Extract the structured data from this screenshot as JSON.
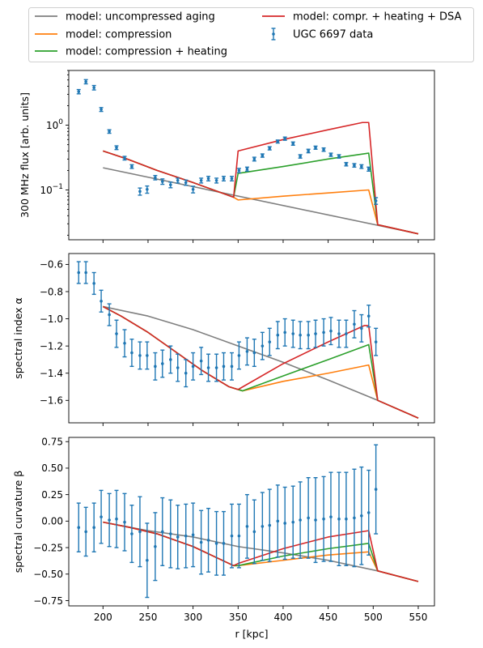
{
  "legend": [
    {
      "label": "model: uncompressed aging",
      "color": "#7f7f7f",
      "kind": "line"
    },
    {
      "label": "model: compression",
      "color": "#ff7f0e",
      "kind": "line"
    },
    {
      "label": "model: compression + heating",
      "color": "#2ca02c",
      "kind": "line"
    },
    {
      "label": "model: compr. + heating + DSA",
      "color": "#d62728",
      "kind": "line"
    },
    {
      "label": "UGC 6697 data",
      "color": "#1f77b4",
      "kind": "errorbar"
    }
  ],
  "chart_data": [
    {
      "type": "line",
      "ylabel": "300 MHz flux [arb. units]",
      "yscale": "log",
      "xlim": [
        162,
        568
      ],
      "ylim": [
        0.017,
        7.0
      ],
      "yticks": [
        {
          "v": 0.1,
          "label": "10^-1"
        },
        {
          "v": 1,
          "label": "10^0"
        }
      ],
      "series": [
        {
          "name": "model: uncompressed aging",
          "color": "#7f7f7f",
          "x": [
            200,
            550
          ],
          "y": [
            0.22,
            0.021
          ]
        },
        {
          "name": "model: compression",
          "color": "#ff7f0e",
          "x": [
            200,
            227,
            260,
            300,
            345,
            350,
            400,
            450,
            495,
            505,
            550
          ],
          "y": [
            0.4,
            0.3,
            0.2,
            0.13,
            0.077,
            0.07,
            0.08,
            0.09,
            0.1,
            0.029,
            0.021
          ]
        },
        {
          "name": "model: compression + heating",
          "color": "#2ca02c",
          "x": [
            200,
            227,
            260,
            300,
            345,
            350,
            400,
            450,
            495,
            505,
            550
          ],
          "y": [
            0.4,
            0.3,
            0.2,
            0.13,
            0.077,
            0.18,
            0.23,
            0.3,
            0.37,
            0.029,
            0.021
          ]
        },
        {
          "name": "model: compr. + heating + DSA",
          "color": "#d62728",
          "x": [
            200,
            227,
            260,
            300,
            345,
            350,
            400,
            450,
            488,
            495,
            505,
            550
          ],
          "y": [
            0.4,
            0.3,
            0.2,
            0.13,
            0.077,
            0.4,
            0.6,
            0.85,
            1.1,
            1.1,
            0.029,
            0.021
          ]
        }
      ],
      "points": {
        "name": "UGC 6697 data",
        "color": "#1f77b4",
        "x": [
          173,
          181,
          190,
          198,
          207,
          215,
          224,
          232,
          241,
          249,
          258,
          266,
          275,
          283,
          292,
          300,
          309,
          317,
          326,
          334,
          343,
          351,
          360,
          368,
          377,
          385,
          394,
          402,
          411,
          419,
          428,
          436,
          445,
          453,
          462,
          470,
          479,
          487,
          495,
          503
        ],
        "y": [
          3.3,
          4.7,
          3.8,
          1.75,
          0.8,
          0.45,
          0.31,
          0.23,
          0.095,
          0.102,
          0.155,
          0.135,
          0.12,
          0.14,
          0.13,
          0.102,
          0.14,
          0.15,
          0.14,
          0.15,
          0.15,
          0.2,
          0.21,
          0.3,
          0.34,
          0.44,
          0.56,
          0.62,
          0.52,
          0.33,
          0.4,
          0.45,
          0.42,
          0.35,
          0.33,
          0.25,
          0.24,
          0.23,
          0.21,
          0.068
        ],
        "err": [
          0.25,
          0.35,
          0.3,
          0.12,
          0.05,
          0.03,
          0.02,
          0.015,
          0.012,
          0.013,
          0.012,
          0.013,
          0.012,
          0.012,
          0.012,
          0.012,
          0.012,
          0.012,
          0.012,
          0.012,
          0.012,
          0.015,
          0.015,
          0.02,
          0.02,
          0.025,
          0.03,
          0.035,
          0.03,
          0.02,
          0.025,
          0.025,
          0.025,
          0.02,
          0.02,
          0.015,
          0.015,
          0.015,
          0.015,
          0.008
        ]
      }
    },
    {
      "type": "line",
      "ylabel": "spectral index α",
      "yscale": "linear",
      "xlim": [
        162,
        568
      ],
      "ylim": [
        -1.765,
        -0.52
      ],
      "yticks": [
        {
          "v": -0.6,
          "label": "−0.6"
        },
        {
          "v": -0.8,
          "label": "−0.8"
        },
        {
          "v": -1.0,
          "label": "−1.0"
        },
        {
          "v": -1.2,
          "label": "−1.2"
        },
        {
          "v": -1.4,
          "label": "−1.4"
        },
        {
          "v": -1.6,
          "label": "−1.6"
        }
      ],
      "series": [
        {
          "name": "model: uncompressed aging",
          "color": "#7f7f7f",
          "x": [
            200,
            250,
            300,
            350,
            400,
            450,
            505,
            550
          ],
          "y": [
            -0.91,
            -0.98,
            -1.08,
            -1.2,
            -1.32,
            -1.45,
            -1.6,
            -1.73
          ]
        },
        {
          "name": "model: compression",
          "color": "#ff7f0e",
          "x": [
            200,
            220,
            250,
            280,
            310,
            340,
            355,
            400,
            450,
            495,
            505,
            550
          ],
          "y": [
            -0.91,
            -0.98,
            -1.1,
            -1.24,
            -1.38,
            -1.5,
            -1.53,
            -1.46,
            -1.4,
            -1.34,
            -1.6,
            -1.73
          ]
        },
        {
          "name": "model: compression + heating",
          "color": "#2ca02c",
          "x": [
            200,
            220,
            250,
            280,
            310,
            340,
            355,
            400,
            450,
            495,
            505,
            550
          ],
          "y": [
            -0.91,
            -0.98,
            -1.1,
            -1.24,
            -1.38,
            -1.5,
            -1.53,
            -1.42,
            -1.3,
            -1.19,
            -1.6,
            -1.73
          ]
        },
        {
          "name": "model: compr. + heating + DSA",
          "color": "#d62728",
          "x": [
            200,
            220,
            250,
            280,
            310,
            340,
            350,
            400,
            450,
            490,
            495,
            505,
            550
          ],
          "y": [
            -0.91,
            -0.98,
            -1.1,
            -1.24,
            -1.38,
            -1.5,
            -1.52,
            -1.33,
            -1.17,
            -1.05,
            -1.05,
            -1.6,
            -1.73
          ]
        }
      ],
      "points": {
        "name": "UGC 6697 data",
        "color": "#1f77b4",
        "x": [
          173,
          181,
          190,
          198,
          207,
          215,
          224,
          232,
          241,
          249,
          258,
          266,
          275,
          283,
          292,
          300,
          309,
          317,
          326,
          334,
          343,
          351,
          360,
          368,
          377,
          385,
          394,
          402,
          411,
          419,
          428,
          436,
          445,
          453,
          462,
          470,
          479,
          487,
          495,
          503
        ],
        "y": [
          -0.66,
          -0.66,
          -0.74,
          -0.87,
          -0.97,
          -1.11,
          -1.18,
          -1.25,
          -1.27,
          -1.27,
          -1.35,
          -1.33,
          -1.3,
          -1.36,
          -1.4,
          -1.35,
          -1.31,
          -1.36,
          -1.36,
          -1.35,
          -1.35,
          -1.27,
          -1.24,
          -1.25,
          -1.2,
          -1.17,
          -1.12,
          -1.1,
          -1.11,
          -1.12,
          -1.12,
          -1.11,
          -1.1,
          -1.09,
          -1.11,
          -1.11,
          -1.04,
          -1.07,
          -0.98,
          -1.17
        ],
        "err": [
          0.08,
          0.08,
          0.08,
          0.08,
          0.08,
          0.1,
          0.1,
          0.1,
          0.1,
          0.1,
          0.1,
          0.1,
          0.1,
          0.1,
          0.1,
          0.1,
          0.1,
          0.1,
          0.1,
          0.1,
          0.1,
          0.1,
          0.1,
          0.1,
          0.1,
          0.1,
          0.1,
          0.1,
          0.1,
          0.1,
          0.1,
          0.1,
          0.1,
          0.1,
          0.1,
          0.1,
          0.1,
          0.1,
          0.08,
          0.1
        ]
      }
    },
    {
      "type": "line",
      "ylabel": "spectral curvature β",
      "yscale": "linear",
      "xlim": [
        162,
        568
      ],
      "ylim": [
        -0.8,
        0.79
      ],
      "xlabel": "r [kpc]",
      "xticks": [
        200,
        250,
        300,
        350,
        400,
        450,
        500,
        550
      ],
      "yticks": [
        {
          "v": 0.75,
          "label": "0.75"
        },
        {
          "v": 0.5,
          "label": "0.50"
        },
        {
          "v": 0.25,
          "label": "0.25"
        },
        {
          "v": 0.0,
          "label": "0.00"
        },
        {
          "v": -0.25,
          "label": "−0.25"
        },
        {
          "v": -0.5,
          "label": "−0.50"
        },
        {
          "v": -0.75,
          "label": "−0.75"
        }
      ],
      "series": [
        {
          "name": "model: uncompressed aging",
          "color": "#7f7f7f",
          "x": [
            200,
            250,
            300,
            350,
            400,
            450,
            505,
            550
          ],
          "y": [
            -0.01,
            -0.09,
            -0.15,
            -0.24,
            -0.3,
            -0.37,
            -0.47,
            -0.57
          ]
        },
        {
          "name": "model: compression",
          "color": "#ff7f0e",
          "x": [
            200,
            230,
            260,
            300,
            345,
            350,
            400,
            450,
            495,
            505,
            550
          ],
          "y": [
            -0.01,
            -0.06,
            -0.12,
            -0.24,
            -0.42,
            -0.42,
            -0.37,
            -0.32,
            -0.29,
            -0.47,
            -0.57
          ]
        },
        {
          "name": "model: compression + heating",
          "color": "#2ca02c",
          "x": [
            200,
            230,
            260,
            300,
            345,
            350,
            400,
            450,
            495,
            505,
            550
          ],
          "y": [
            -0.01,
            -0.06,
            -0.12,
            -0.24,
            -0.42,
            -0.42,
            -0.33,
            -0.26,
            -0.21,
            -0.47,
            -0.57
          ]
        },
        {
          "name": "model: compr. + heating + DSA",
          "color": "#d62728",
          "x": [
            200,
            230,
            260,
            300,
            345,
            350,
            400,
            450,
            495,
            505,
            550
          ],
          "y": [
            -0.01,
            -0.06,
            -0.12,
            -0.24,
            -0.42,
            -0.4,
            -0.26,
            -0.15,
            -0.09,
            -0.47,
            -0.57
          ]
        }
      ],
      "points": {
        "name": "UGC 6697 data",
        "color": "#1f77b4",
        "x": [
          173,
          181,
          190,
          198,
          207,
          215,
          224,
          232,
          241,
          249,
          258,
          266,
          275,
          283,
          292,
          300,
          309,
          317,
          326,
          334,
          343,
          351,
          360,
          368,
          377,
          385,
          394,
          402,
          411,
          419,
          428,
          436,
          445,
          453,
          462,
          470,
          479,
          487,
          495,
          503
        ],
        "y": [
          -0.06,
          -0.1,
          -0.06,
          0.04,
          0.01,
          0.02,
          -0.01,
          -0.12,
          -0.1,
          -0.37,
          -0.24,
          -0.1,
          -0.12,
          -0.15,
          -0.14,
          -0.13,
          -0.2,
          -0.18,
          -0.21,
          -0.21,
          -0.14,
          -0.14,
          -0.05,
          -0.1,
          -0.05,
          -0.04,
          0.0,
          -0.02,
          -0.01,
          0.01,
          0.03,
          0.01,
          0.02,
          0.04,
          0.02,
          0.02,
          0.03,
          0.05,
          0.08,
          0.3
        ],
        "err": [
          0.23,
          0.23,
          0.23,
          0.25,
          0.25,
          0.27,
          0.27,
          0.27,
          0.33,
          0.35,
          0.32,
          0.32,
          0.32,
          0.3,
          0.3,
          0.3,
          0.3,
          0.3,
          0.3,
          0.3,
          0.3,
          0.3,
          0.3,
          0.3,
          0.32,
          0.34,
          0.34,
          0.34,
          0.34,
          0.36,
          0.38,
          0.4,
          0.4,
          0.42,
          0.44,
          0.44,
          0.46,
          0.46,
          0.4,
          0.42
        ]
      }
    }
  ]
}
